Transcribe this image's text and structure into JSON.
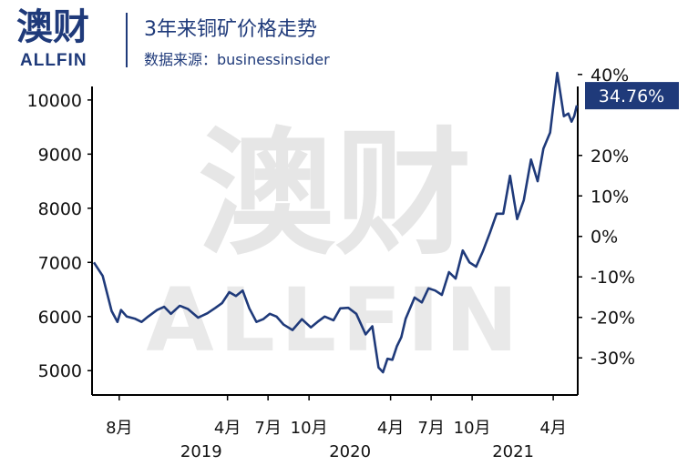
{
  "brand": {
    "logo_text": "澳财",
    "logo_sub": "ALLFIN"
  },
  "header": {
    "title": "3年来铜矿价格走势",
    "subtitle": "数据来源：businessinsider"
  },
  "watermark": {
    "cn": "澳财",
    "en": "ALLFIN"
  },
  "colors": {
    "line": "#1f3a7a",
    "badge": "#1f3a7a",
    "axis": "#000000",
    "brand": "#1f3a7a"
  },
  "chart_data": {
    "type": "line",
    "title": "3年来铜矿价格走势",
    "left_axis": {
      "ticks": [
        5000,
        6000,
        7000,
        8000,
        9000,
        10000
      ],
      "tick_labels": [
        "5000",
        "6000",
        "7000",
        "8000",
        "9000",
        "10000"
      ],
      "range": [
        4550,
        10250
      ]
    },
    "right_axis": {
      "ticks": [
        -30,
        -20,
        -10,
        0,
        10,
        20,
        40
      ],
      "tick_labels": [
        "-30%",
        "-20%",
        "-10%",
        "0%",
        "10%",
        "20%",
        "40%"
      ]
    },
    "x_ticks": [
      {
        "label": "8月",
        "date": "2018-08-01"
      },
      {
        "label": "4月",
        "date": "2019-04-01"
      },
      {
        "label": "7月",
        "date": "2019-07-01"
      },
      {
        "label": "10月",
        "date": "2019-10-01"
      },
      {
        "label": "4月",
        "date": "2020-04-01"
      },
      {
        "label": "7月",
        "date": "2020-07-01"
      },
      {
        "label": "10月",
        "date": "2020-10-01"
      },
      {
        "label": "4月",
        "date": "2021-04-01"
      }
    ],
    "year_labels": [
      {
        "label": "2019",
        "date": "2019-02-01"
      },
      {
        "label": "2020",
        "date": "2020-01-01"
      },
      {
        "label": "2021",
        "date": "2021-01-01"
      }
    ],
    "x_range": [
      "2018-06-01",
      "2021-05-26"
    ],
    "badge": {
      "label": "34.76%",
      "value": 34.76
    },
    "series": [
      {
        "x": [
          "2018-06-05",
          "2018-06-25",
          "2018-07-15",
          "2018-07-28",
          "2018-08-05",
          "2018-08-18",
          "2018-09-05",
          "2018-09-20",
          "2018-10-05",
          "2018-10-25",
          "2018-11-10",
          "2018-11-25",
          "2018-12-15",
          "2019-01-02",
          "2019-01-25",
          "2019-02-15",
          "2019-03-05",
          "2019-03-20",
          "2019-04-05",
          "2019-04-20",
          "2019-05-05",
          "2019-05-20",
          "2019-06-05",
          "2019-06-20",
          "2019-07-05",
          "2019-07-20",
          "2019-08-05",
          "2019-08-25",
          "2019-09-15",
          "2019-10-05",
          "2019-10-20",
          "2019-11-05",
          "2019-11-25",
          "2019-12-10",
          "2019-12-28",
          "2020-01-15",
          "2020-02-05",
          "2020-02-20",
          "2020-03-05",
          "2020-03-15",
          "2020-03-25",
          "2020-04-05",
          "2020-04-15",
          "2020-04-25",
          "2020-05-05",
          "2020-05-25",
          "2020-06-10",
          "2020-06-25",
          "2020-07-10",
          "2020-07-25",
          "2020-08-10",
          "2020-08-25",
          "2020-09-10",
          "2020-09-25",
          "2020-10-10",
          "2020-10-25",
          "2020-11-10",
          "2020-11-25",
          "2020-12-10",
          "2020-12-25",
          "2021-01-10",
          "2021-01-25",
          "2021-02-10",
          "2021-02-25",
          "2021-03-10",
          "2021-03-25",
          "2021-04-10",
          "2021-04-25",
          "2021-05-05",
          "2021-05-12",
          "2021-05-18",
          "2021-05-24"
        ],
        "y": [
          7000,
          6750,
          6100,
          5900,
          6120,
          6000,
          5960,
          5900,
          6000,
          6120,
          6180,
          6050,
          6200,
          6140,
          5980,
          6060,
          6160,
          6250,
          6450,
          6380,
          6480,
          6150,
          5900,
          5950,
          6050,
          6000,
          5850,
          5750,
          5950,
          5800,
          5900,
          6000,
          5930,
          6150,
          6160,
          6050,
          5670,
          5820,
          5060,
          4970,
          5220,
          5200,
          5450,
          5620,
          5960,
          6350,
          6260,
          6520,
          6480,
          6400,
          6820,
          6700,
          7220,
          7000,
          6920,
          7200,
          7550,
          7900,
          7900,
          8600,
          7800,
          8150,
          8900,
          8500,
          9100,
          9400,
          10500,
          9700,
          9750,
          9600,
          9700,
          9900
        ]
      }
    ]
  }
}
